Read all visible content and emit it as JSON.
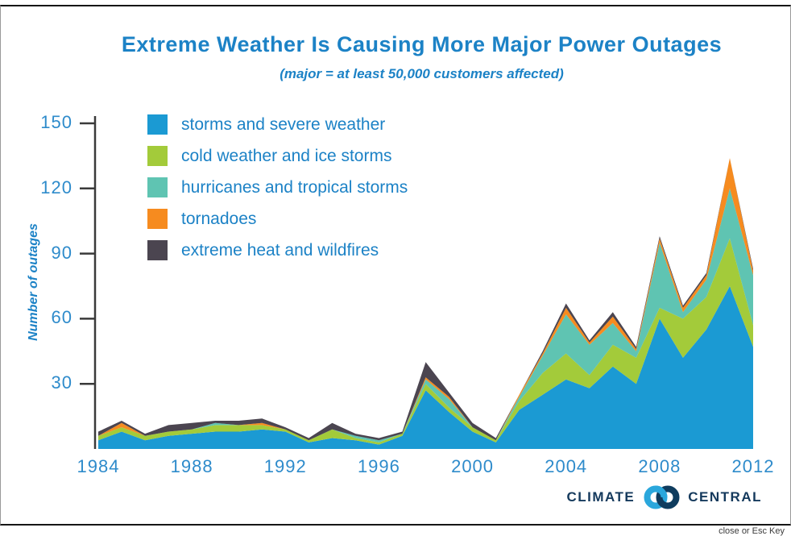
{
  "lightbox": {
    "close_hint": "close or Esc Key"
  },
  "branding": {
    "left": "CLIMATE",
    "right": "CENTRAL"
  },
  "chart_data": {
    "type": "area",
    "stacked": true,
    "title": "Extreme Weather Is Causing More Major Power Outages",
    "subtitle": "(major = at least 50,000 customers affected)",
    "ylabel": "Number of outages",
    "xlabel": "",
    "grid": false,
    "legend_position": "top-left",
    "ylim": [
      0,
      150
    ],
    "yticks": [
      30,
      60,
      90,
      120,
      150
    ],
    "xticks": [
      1984,
      1988,
      1992,
      1996,
      2000,
      2004,
      2008,
      2012
    ],
    "x": [
      1984,
      1985,
      1986,
      1987,
      1988,
      1989,
      1990,
      1991,
      1992,
      1993,
      1994,
      1995,
      1996,
      1997,
      1998,
      1999,
      2000,
      2001,
      2002,
      2003,
      2004,
      2005,
      2006,
      2007,
      2008,
      2009,
      2010,
      2011,
      2012
    ],
    "series": [
      {
        "name": "storms and severe weather",
        "color": "#1B9AD3",
        "values": [
          4,
          8,
          4,
          6,
          7,
          8,
          8,
          9,
          8,
          3,
          5,
          4,
          2,
          6,
          27,
          17,
          8,
          3,
          18,
          25,
          32,
          28,
          38,
          30,
          60,
          42,
          55,
          75,
          47
        ]
      },
      {
        "name": "cold weather and ice storms",
        "color": "#A3CB3A",
        "values": [
          2,
          2,
          2,
          2,
          2,
          3,
          3,
          2,
          1,
          1,
          4,
          1,
          1,
          1,
          3,
          2,
          2,
          1,
          4,
          10,
          12,
          6,
          10,
          12,
          5,
          18,
          15,
          22,
          10
        ]
      },
      {
        "name": "hurricanes and tropical storms",
        "color": "#5FC4B2",
        "values": [
          0,
          0,
          0,
          0,
          0,
          1,
          0,
          0,
          0,
          0,
          0,
          1,
          1,
          0,
          2,
          4,
          0,
          0,
          2,
          8,
          18,
          14,
          10,
          3,
          30,
          3,
          8,
          23,
          23
        ]
      },
      {
        "name": "tornadoes",
        "color": "#F68B1F",
        "values": [
          0,
          2,
          0,
          0,
          0,
          0,
          0,
          1,
          0,
          0,
          0,
          0,
          0,
          0,
          1,
          1,
          0,
          0,
          1,
          1,
          3,
          1,
          3,
          1,
          2,
          2,
          2,
          14,
          2
        ]
      },
      {
        "name": "extreme heat and wildfires",
        "color": "#4B4550",
        "values": [
          2,
          1,
          1,
          3,
          3,
          1,
          2,
          2,
          1,
          1,
          3,
          1,
          1,
          1,
          7,
          2,
          2,
          1,
          0,
          1,
          2,
          1,
          2,
          1,
          1,
          1,
          1,
          0,
          1
        ]
      }
    ]
  }
}
